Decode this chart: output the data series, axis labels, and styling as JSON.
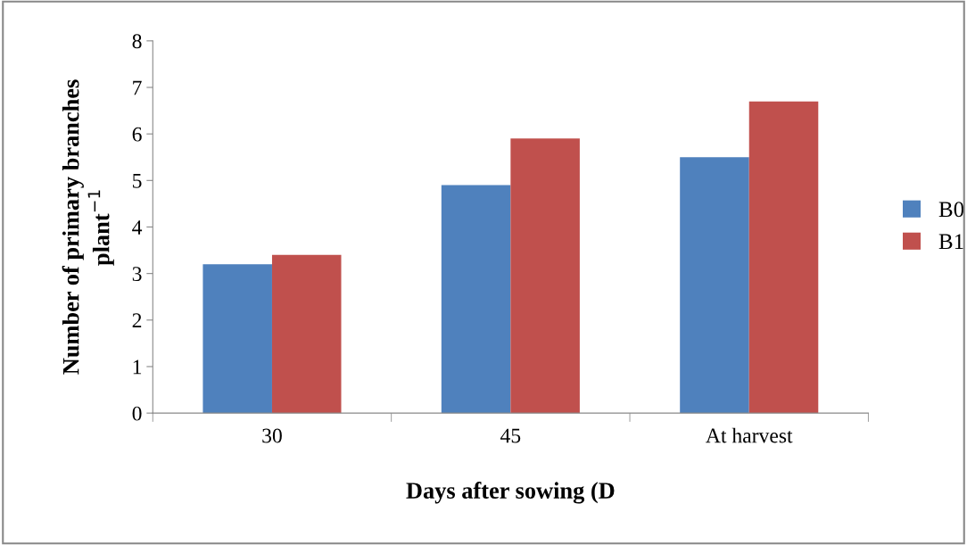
{
  "chart_data": {
    "type": "bar",
    "xlabel": "Days after sowing (D",
    "ylabel": "Number of primary branches\nplant$^{−1}$",
    "categories": [
      "30",
      "45",
      "At harvest"
    ],
    "series": [
      {
        "name": "B0",
        "color": "#4f81bd",
        "values": [
          3.2,
          4.9,
          5.5
        ]
      },
      {
        "name": "B1",
        "color": "#c0504d",
        "values": [
          3.4,
          5.9,
          6.7
        ]
      }
    ],
    "ylim": [
      0,
      8
    ],
    "yticks": [
      0,
      1,
      2,
      3,
      4,
      5,
      6,
      7,
      8
    ],
    "grid": false,
    "legend": "right"
  }
}
